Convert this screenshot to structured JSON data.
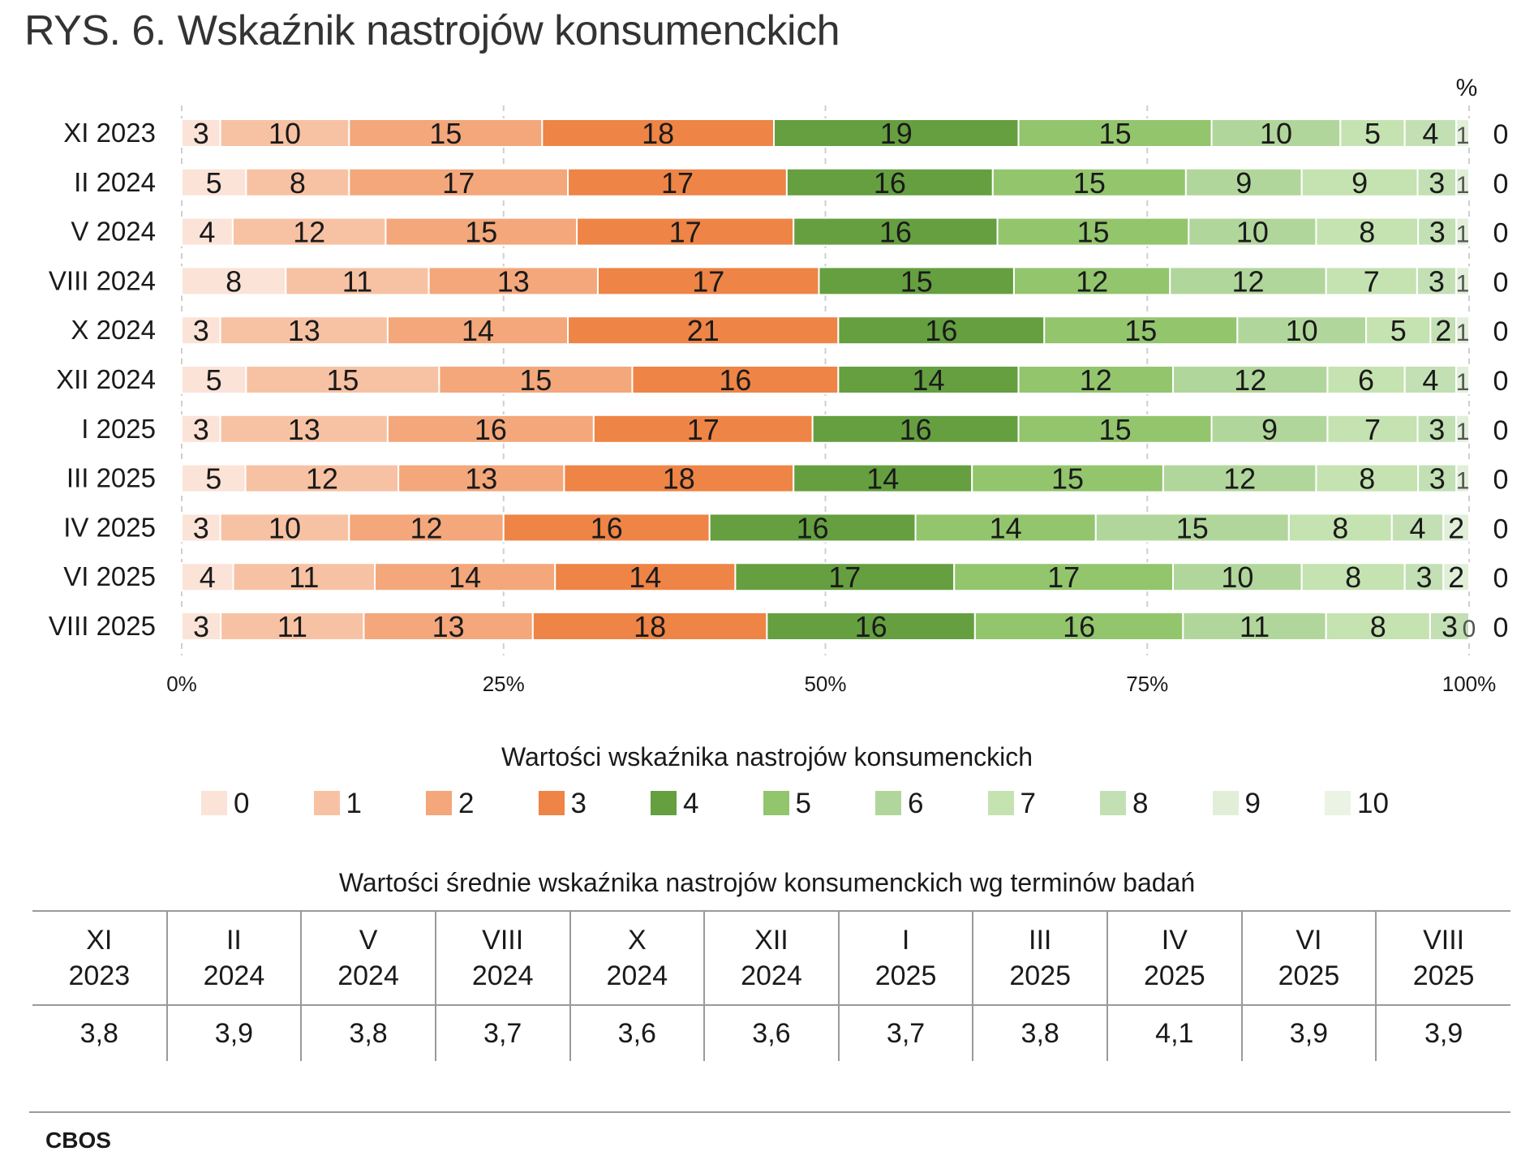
{
  "title": "RYS. 6. Wskaźnik nastrojów konsumenckich",
  "chart_data": {
    "type": "bar",
    "orientation": "horizontal",
    "stacked": "percent",
    "unit_label": "%",
    "categories": [
      "XI 2023",
      "II 2024",
      "V 2024",
      "VIII 2024",
      "X 2024",
      "XII 2024",
      "I 2025",
      "III 2025",
      "IV 2025",
      "VI 2025",
      "VIII 2025"
    ],
    "series": [
      {
        "name": "0",
        "color": "#fbe3d8",
        "values": [
          3,
          5,
          4,
          8,
          3,
          5,
          3,
          5,
          3,
          4,
          3
        ]
      },
      {
        "name": "1",
        "color": "#f7c2a3",
        "values": [
          10,
          8,
          12,
          11,
          13,
          15,
          13,
          12,
          10,
          11,
          11
        ]
      },
      {
        "name": "2",
        "color": "#f3a77b",
        "values": [
          15,
          17,
          15,
          13,
          14,
          15,
          16,
          13,
          12,
          14,
          13
        ]
      },
      {
        "name": "3",
        "color": "#ee8446",
        "values": [
          18,
          17,
          17,
          17,
          21,
          16,
          17,
          18,
          16,
          14,
          18
        ]
      },
      {
        "name": "4",
        "color": "#659f40",
        "values": [
          19,
          16,
          16,
          15,
          16,
          14,
          16,
          14,
          16,
          17,
          16
        ]
      },
      {
        "name": "5",
        "color": "#93c56d",
        "values": [
          15,
          15,
          15,
          12,
          15,
          12,
          15,
          15,
          14,
          17,
          16
        ]
      },
      {
        "name": "6",
        "color": "#b1d69b",
        "values": [
          10,
          9,
          10,
          12,
          10,
          12,
          9,
          12,
          15,
          10,
          11
        ]
      },
      {
        "name": "7",
        "color": "#c5e2b1",
        "values": [
          5,
          9,
          8,
          7,
          5,
          6,
          7,
          8,
          8,
          8,
          8
        ]
      },
      {
        "name": "8",
        "color": "#c2e0b4",
        "values": [
          4,
          3,
          3,
          3,
          2,
          4,
          3,
          3,
          4,
          3,
          3
        ]
      },
      {
        "name": "9",
        "color": "#e1efd8",
        "values": [
          1,
          1,
          1,
          1,
          1,
          1,
          1,
          1,
          2,
          2,
          0
        ]
      },
      {
        "name": "10",
        "color": "#ebf3e4",
        "values": [
          0,
          0,
          0,
          0,
          0,
          0,
          0,
          0,
          0,
          0,
          0
        ]
      }
    ],
    "xlim": [
      0,
      100
    ],
    "x_ticks": [
      "0%",
      "25%",
      "50%",
      "75%",
      "100%"
    ],
    "legend_title": "Wartości wskaźnika nastrojów konsumenckich",
    "legend_position": "bottom"
  },
  "mean_table": {
    "title": "Wartości średnie wskaźnika nastrojów konsumenckich wg terminów badań",
    "columns": [
      {
        "line1": "XI",
        "line2": "2023",
        "value": "3,8"
      },
      {
        "line1": "II",
        "line2": "2024",
        "value": "3,9"
      },
      {
        "line1": "V",
        "line2": "2024",
        "value": "3,8"
      },
      {
        "line1": "VIII",
        "line2": "2024",
        "value": "3,7"
      },
      {
        "line1": "X",
        "line2": "2024",
        "value": "3,6"
      },
      {
        "line1": "XII",
        "line2": "2024",
        "value": "3,6"
      },
      {
        "line1": "I",
        "line2": "2025",
        "value": "3,7"
      },
      {
        "line1": "III",
        "line2": "2025",
        "value": "3,8"
      },
      {
        "line1": "IV",
        "line2": "2025",
        "value": "4,1"
      },
      {
        "line1": "VI",
        "line2": "2025",
        "value": "3,9"
      },
      {
        "line1": "VIII",
        "line2": "2025",
        "value": "3,9"
      }
    ]
  },
  "source": "CBOS"
}
